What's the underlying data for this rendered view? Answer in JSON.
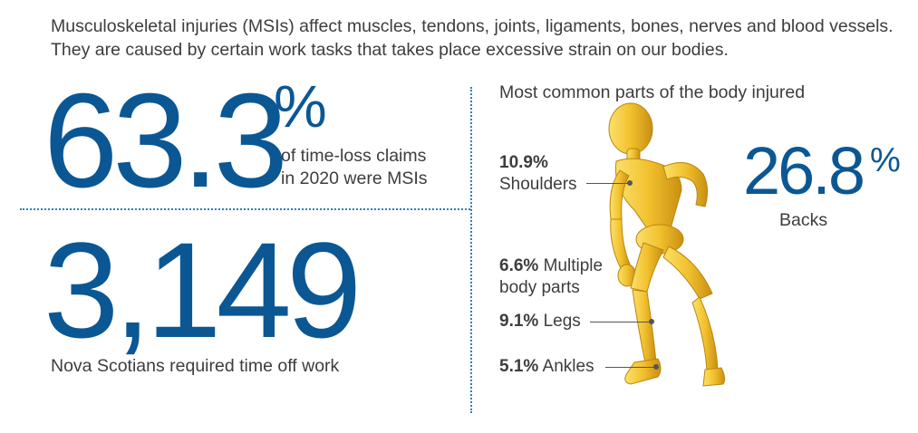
{
  "intro": "Musculoskeletal injuries (MSIs) affect muscles, tendons, joints, ligaments, bones, nerves and blood vessels. They are caused by certain work tasks that takes place excessive strain on our bodies.",
  "stat_claims": {
    "value": "63.3",
    "unit": "%",
    "caption_line1": "of time-loss claims",
    "caption_line2": "in 2020 were MSIs"
  },
  "stat_people": {
    "value": "3,149",
    "caption": "Nova Scotians required time off work"
  },
  "body_parts": {
    "title": "Most common parts of the body injured",
    "shoulders": {
      "value": "10.9%",
      "label": "Shoulders"
    },
    "backs": {
      "value": "26.8",
      "unit": "%",
      "label": "Backs"
    },
    "multiple": {
      "value": "6.6%",
      "label_line1": "Multiple",
      "label_line2": "body parts"
    },
    "legs": {
      "value": "9.1%",
      "label": "Legs"
    },
    "ankles": {
      "value": "5.1%",
      "label": "Ankles"
    }
  },
  "colors": {
    "accent_blue": "#0b5794",
    "figure_yellow": "#f2c12e",
    "dotted_divider": "#2b7fc0"
  },
  "icons": {
    "figure": "mannequin-holding-back-figure"
  }
}
